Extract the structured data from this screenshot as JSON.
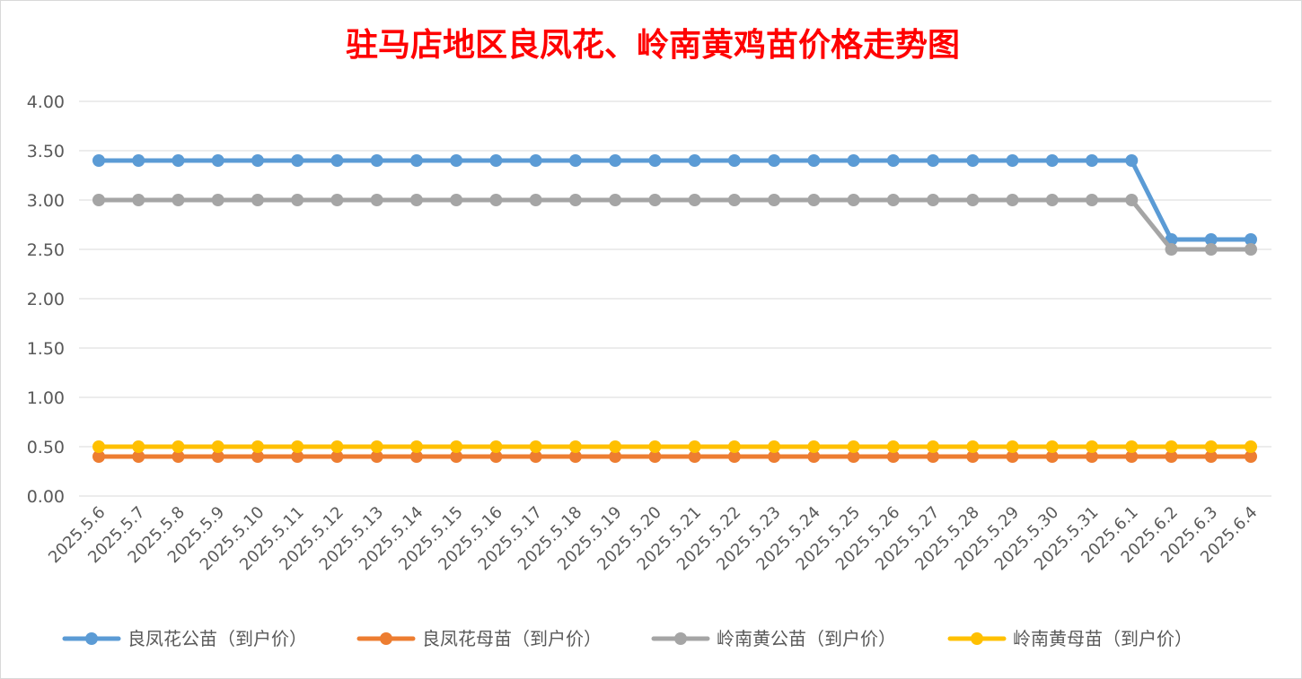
{
  "chart_data": {
    "type": "line",
    "title": "驻马店地区良凤花、岭南黄鸡苗价格走势图",
    "title_color": "#ff0000",
    "xlabel": "",
    "ylabel": "",
    "ylim": [
      0,
      4
    ],
    "y_ticks": [
      "0.00",
      "0.50",
      "1.00",
      "1.50",
      "2.00",
      "2.50",
      "3.00",
      "3.50",
      "4.00"
    ],
    "grid": true,
    "legend_position": "bottom",
    "categories": [
      "2025.5.6",
      "2025.5.7",
      "2025.5.8",
      "2025.5.9",
      "2025.5.10",
      "2025.5.11",
      "2025.5.12",
      "2025.5.13",
      "2025.5.14",
      "2025.5.15",
      "2025.5.16",
      "2025.5.17",
      "2025.5.18",
      "2025.5.19",
      "2025.5.20",
      "2025.5.21",
      "2025.5.22",
      "2025.5.23",
      "2025.5.24",
      "2025.5.25",
      "2025.5.26",
      "2025.5.27",
      "2025.5.28",
      "2025.5.29",
      "2025.5.30",
      "2025.5.31",
      "2025.6.1",
      "2025.6.2",
      "2025.6.3",
      "2025.6.4"
    ],
    "series": [
      {
        "name": "良凤花公苗（到户价）",
        "color": "#5b9bd5",
        "values": [
          3.4,
          3.4,
          3.4,
          3.4,
          3.4,
          3.4,
          3.4,
          3.4,
          3.4,
          3.4,
          3.4,
          3.4,
          3.4,
          3.4,
          3.4,
          3.4,
          3.4,
          3.4,
          3.4,
          3.4,
          3.4,
          3.4,
          3.4,
          3.4,
          3.4,
          3.4,
          3.4,
          2.6,
          2.6,
          2.6
        ]
      },
      {
        "name": "良凤花母苗（到户价）",
        "color": "#ed7d31",
        "values": [
          0.4,
          0.4,
          0.4,
          0.4,
          0.4,
          0.4,
          0.4,
          0.4,
          0.4,
          0.4,
          0.4,
          0.4,
          0.4,
          0.4,
          0.4,
          0.4,
          0.4,
          0.4,
          0.4,
          0.4,
          0.4,
          0.4,
          0.4,
          0.4,
          0.4,
          0.4,
          0.4,
          0.4,
          0.4,
          0.4
        ]
      },
      {
        "name": "岭南黄公苗（到户价）",
        "color": "#a5a5a5",
        "values": [
          3.0,
          3.0,
          3.0,
          3.0,
          3.0,
          3.0,
          3.0,
          3.0,
          3.0,
          3.0,
          3.0,
          3.0,
          3.0,
          3.0,
          3.0,
          3.0,
          3.0,
          3.0,
          3.0,
          3.0,
          3.0,
          3.0,
          3.0,
          3.0,
          3.0,
          3.0,
          3.0,
          2.5,
          2.5,
          2.5
        ]
      },
      {
        "name": "岭南黄母苗（到户价）",
        "color": "#ffc000",
        "values": [
          0.5,
          0.5,
          0.5,
          0.5,
          0.5,
          0.5,
          0.5,
          0.5,
          0.5,
          0.5,
          0.5,
          0.5,
          0.5,
          0.5,
          0.5,
          0.5,
          0.5,
          0.5,
          0.5,
          0.5,
          0.5,
          0.5,
          0.5,
          0.5,
          0.5,
          0.5,
          0.5,
          0.5,
          0.5,
          0.5
        ]
      }
    ]
  }
}
